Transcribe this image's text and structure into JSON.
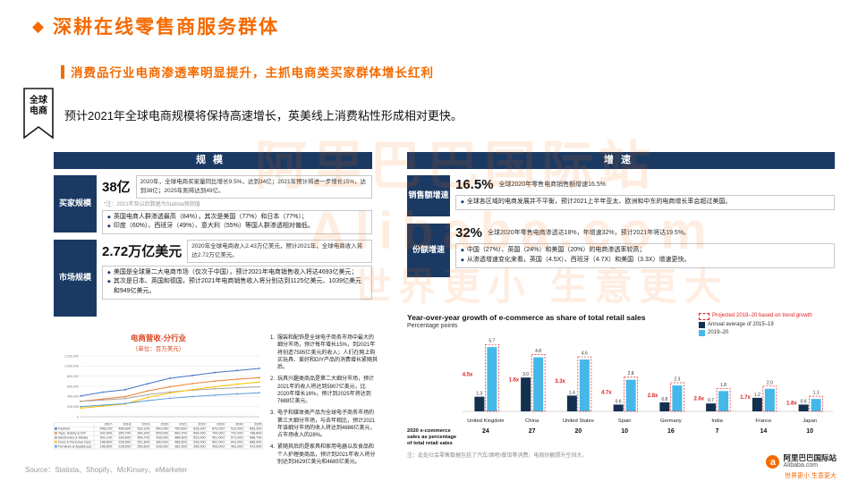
{
  "colors": {
    "accent_orange": "#f46a00",
    "navy": "#1b3a63",
    "red": "#e02020",
    "light_blue": "#45b7e8",
    "chart_title_red": "#d8431f"
  },
  "header": {
    "title": "深耕在线零售商服务群体",
    "subtitle": "消费品行业电商渗透率明显提升，主抓电商类买家群体增长红利"
  },
  "intro": {
    "tag_line1": "全球",
    "tag_line2": "电商",
    "text": "预计2021年全球电商规模将保持高速增长，英美线上消费粘性形成相对更快。"
  },
  "scale_panel": {
    "header": "规模",
    "rows": [
      {
        "label": "买家规模",
        "big": "38亿",
        "desc": "2020年，全球电商买家量同比增长9.5%，达到34亿；2021年预计将进一步增长15%，达到38亿；2025年则将达到49亿。",
        "note": "*注：2021年及以后数据为Statista预测值",
        "bullets": [
          "英国电商人群渗透最高（84%），其次是美国（77%）和日本（77%）；",
          "印度（60%）、西班牙（49%）、意大利（55%）等国人群渗透相对偏低。"
        ]
      },
      {
        "label": "市场规模",
        "big": "2.72万亿美元",
        "desc": "2020年全球电商收入2.43万亿美元，预计2021年，全球电商收入将达2.72万亿美元。",
        "bullets": [
          "美国是全球第二大电商市场（仅次于中国），预计2021年电商销售收入将达4693亿美元；",
          "其次是日本、英国和德国，预计2021年电商销售收入将分别达到1125亿美元、1039亿美元和949亿美元。"
        ]
      }
    ]
  },
  "growth_panel": {
    "header": "增速",
    "rows": [
      {
        "label": "销售额增速",
        "big": "16.5%",
        "desc": "全球2020年零售电商销售额增速16.5%",
        "bullets": [
          "全球各区域的电商发展并不平衡，预计2021上半年亚太、欧洲和中东的电商增长率会超过美国。"
        ]
      },
      {
        "label": "份额增速",
        "big": "32%",
        "desc": "全球2020年零售电商渗透达18%，年增速32%，预计2021年将达19.5%。",
        "bullets": [
          "中国（27%）、英国（24%）和美国（20%）的电商渗透率较高；",
          "从渗透增速变化来看，英国（4.5X）、西班牙（4.7X）和美国（3.3X）增速更快。"
        ]
      }
    ]
  },
  "notes_list": [
    "服装和配饰是全球电子商务市场中最大的细分市场，预计每年增长15%，到2021年将创造7595亿美元的收入；人们在网上购买玩具、爱好和DIY产品的消费增长紧随其后。",
    "玩具兴趣类商品是第二大细分市场，预计2021年的收入将达到5907亿美元，比2020年增长16%，预计到2025年将达到7688亿美元。",
    "电子和媒体类产品为全球电子商务市场的第三大细分市场，与去年相比，预计2021年该细分市场的收入将达到4886亿美元，占市场收入的28%。",
    "紧随其后的是家具和家用电器以及食品和个人护理类商品，预计到2021年收入将分别达到3629亿美元和4685亿美元。"
  ],
  "chart_data": [
    {
      "type": "line",
      "title": "电商营收-分行业",
      "subtitle": "（单位：百万美元）",
      "x": [
        2017,
        2018,
        2019,
        2020,
        2021,
        2022,
        2023,
        2024,
        2025
      ],
      "series": [
        {
          "name": "Fashion",
          "color": "#4472c4",
          "values": [
            408100,
            485600,
            533100,
            650000,
            759500,
            815000,
            872000,
            912000,
            953300
          ]
        },
        {
          "name": "Toys, Hobby & DIY",
          "color": "#ed7d31",
          "values": [
            302000,
            350700,
            394200,
            509000,
            590700,
            654000,
            704000,
            741000,
            768800
          ]
        },
        {
          "name": "Electronics & Media",
          "color": "#a5a5a5",
          "values": [
            301100,
            330800,
            356700,
            435000,
            488600,
            522000,
            551000,
            571000,
            588700
          ]
        },
        {
          "name": "Food & Personal Care",
          "color": "#ffc000",
          "values": [
            168800,
            209900,
            251800,
            380000,
            468500,
            533000,
            591000,
            641000,
            685900
          ]
        },
        {
          "name": "Furniture & Appliances",
          "color": "#5b9bd5",
          "values": [
            198500,
            228900,
            259600,
            318000,
            362900,
            396000,
            426000,
            451000,
            472900
          ]
        }
      ],
      "ylim": [
        0,
        1200000
      ],
      "yticks": [
        "0",
        "200,000",
        "400,000",
        "600,000",
        "800,000",
        "1,000,000",
        "1,200,000"
      ],
      "grid": true,
      "legend_position": "table-below"
    },
    {
      "type": "bar",
      "title": "Year-over-year growth of e-commerce as share of total retail sales",
      "subtitle": "Percentage points",
      "categories": [
        "United Kingdom",
        "China",
        "United States",
        "Spain",
        "Germany",
        "India",
        "France",
        "Japan"
      ],
      "series": [
        {
          "name": "Annual average of 2015–19",
          "color": "#14304f",
          "values": [
            1.3,
            3.0,
            1.4,
            0.6,
            0.8,
            0.7,
            1.2,
            0.6
          ]
        },
        {
          "name": "2019–20",
          "color": "#45b7e8",
          "values": [
            5.7,
            4.8,
            4.6,
            2.8,
            2.3,
            1.8,
            2.0,
            1.1
          ]
        }
      ],
      "multipliers": [
        "4.5x",
        "1.6x",
        "3.3x",
        "4.7x",
        "2.8x",
        "2.6x",
        "1.7x",
        "1.8x"
      ],
      "legend_projected": "Projected 2019–20 based on trend growth",
      "footer_label": "2020 e-commerce sales as percentage of total retail sales",
      "footer_values": [
        "24",
        "27",
        "20",
        "10",
        "16",
        "7",
        "14",
        "10"
      ],
      "note": "注：此处社会零售数据包括了汽车/酒吧/餐馆等消费，电商份额提升空间大。",
      "ylim": [
        0,
        6
      ],
      "grid": false,
      "legend_position": "top-right"
    }
  ],
  "footer": {
    "source": "Source：Statista、Shopify、McKinsey、eMarketer",
    "logo_icon": "a",
    "logo_cn": "阿里巴巴国际站",
    "logo_en": "Alibaba.com",
    "slogan": "世界更小 生意更大"
  },
  "watermark": {
    "line1": "阿里巴巴国际站",
    "line2": "Alibaba.com",
    "line3": "世界更小 生意更大"
  }
}
